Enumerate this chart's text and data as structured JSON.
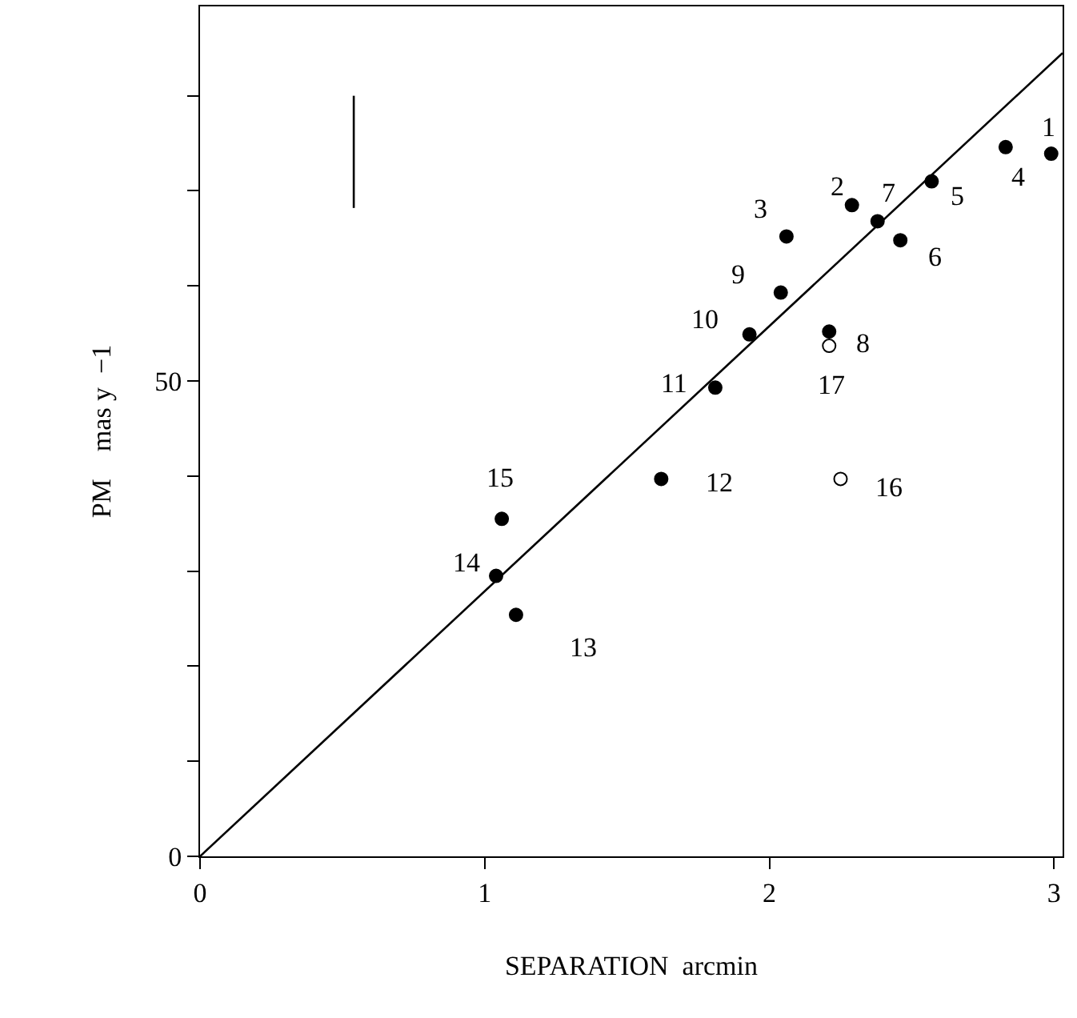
{
  "chart_data": {
    "type": "scatter",
    "xlabel": "SEPARATION  arcmin",
    "ylabel": "PM    mas y  −1",
    "xlim": [
      0,
      3.03
    ],
    "ylim": [
      0,
      89.4
    ],
    "xticks": [
      0,
      1,
      2,
      3
    ],
    "yticks": [
      0,
      {
        "value": 10,
        "label": null
      },
      {
        "value": 20,
        "label": null
      },
      {
        "value": 30,
        "label": null
      },
      {
        "value": 40,
        "label": null
      },
      50,
      {
        "value": 60,
        "label": null
      },
      {
        "value": 70,
        "label": null
      },
      {
        "value": 80,
        "label": null
      }
    ],
    "marker": "circle",
    "series": [
      {
        "color": "#000000",
        "x": [
          2.99,
          2.29,
          2.06,
          2.83,
          2.57,
          2.46,
          2.38,
          2.21,
          2.04,
          1.93,
          1.81,
          1.62,
          1.11,
          1.04,
          1.06
        ],
        "values": [
          73.9,
          68.5,
          65.2,
          74.6,
          71.0,
          64.8,
          66.8,
          55.2,
          59.3,
          54.9,
          49.3,
          39.7,
          25.4,
          29.5,
          35.5
        ]
      },
      {
        "color": "#ffffff",
        "x": [
          2.25,
          2.21
        ],
        "values": [
          39.7,
          53.7
        ]
      },
      {
        "type": "line",
        "color": "#000000",
        "marker": "none",
        "x": [
          0,
          3.03
        ],
        "values": [
          0,
          84.5
        ]
      },
      {
        "type": "line",
        "color": "#000000",
        "marker": "none",
        "x": [
          0.54,
          0.54
        ],
        "values": [
          68.2,
          80.0
        ]
      }
    ],
    "annotations": [
      {
        "text": "1",
        "x": 2.99,
        "y": 73.9
      },
      {
        "text": "2",
        "x": 2.29,
        "y": 68.5
      },
      {
        "text": "3",
        "x": 2.06,
        "y": 65.2
      },
      {
        "text": "4",
        "x": 2.83,
        "y": 74.6
      },
      {
        "text": "5",
        "x": 2.57,
        "y": 71.0
      },
      {
        "text": "6",
        "x": 2.46,
        "y": 64.8
      },
      {
        "text": "7",
        "x": 2.38,
        "y": 66.8
      },
      {
        "text": "8",
        "x": 2.21,
        "y": 55.2
      },
      {
        "text": "9",
        "x": 2.04,
        "y": 59.3
      },
      {
        "text": "10",
        "x": 1.93,
        "y": 54.9
      },
      {
        "text": "11",
        "x": 1.81,
        "y": 49.3
      },
      {
        "text": "12",
        "x": 1.62,
        "y": 39.7
      },
      {
        "text": "13",
        "x": 1.11,
        "y": 25.4
      },
      {
        "text": "14",
        "x": 1.04,
        "y": 29.5
      },
      {
        "text": "15",
        "x": 1.06,
        "y": 35.5
      },
      {
        "text": "16",
        "x": 2.25,
        "y": 39.7
      },
      {
        "text": "17",
        "x": 2.21,
        "y": 53.7
      }
    ]
  }
}
